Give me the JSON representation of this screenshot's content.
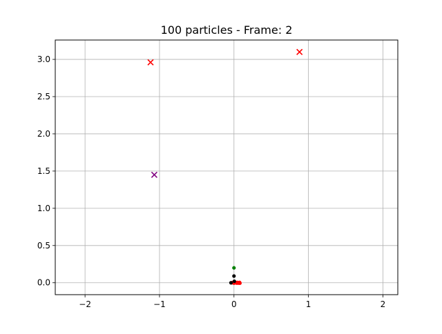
{
  "chart_data": {
    "type": "scatter",
    "title": "100 particles  - Frame: 2",
    "xlabel": "",
    "ylabel": "",
    "xlim": [
      -2.4,
      2.2
    ],
    "ylim": [
      -0.16,
      3.26
    ],
    "xticks": [
      -2,
      -1,
      0,
      1,
      2
    ],
    "xtick_labels": [
      "−2",
      "−1",
      "0",
      "1",
      "2"
    ],
    "yticks": [
      0.0,
      0.5,
      1.0,
      1.5,
      2.0,
      2.5,
      3.0
    ],
    "ytick_labels": [
      "0.0",
      "0.5",
      "1.0",
      "1.5",
      "2.0",
      "2.5",
      "3.0"
    ],
    "grid": true,
    "series": [
      {
        "marker": "x",
        "color": "#ff0000",
        "points": [
          [
            -1.12,
            2.96
          ],
          [
            0.88,
            3.1
          ]
        ]
      },
      {
        "marker": "x",
        "color": "#800080",
        "points": [
          [
            -1.07,
            1.45
          ]
        ]
      },
      {
        "marker": "dot",
        "color": "#ff0000",
        "points": [
          [
            -0.03,
            0.0
          ],
          [
            -0.01,
            0.005
          ],
          [
            0.0,
            -0.005
          ],
          [
            0.02,
            0.0
          ],
          [
            0.04,
            -0.005
          ],
          [
            0.06,
            0.0
          ],
          [
            0.075,
            0.005
          ],
          [
            0.08,
            -0.005
          ],
          [
            0.015,
            0.005
          ],
          [
            0.045,
            0.005
          ],
          [
            0.065,
            -0.005
          ]
        ]
      },
      {
        "marker": "dot",
        "color": "#000000",
        "points": [
          [
            -0.04,
            0.0
          ],
          [
            0.0,
            0.09
          ],
          [
            0.005,
            0.02
          ]
        ]
      },
      {
        "marker": "dot",
        "color": "#008000",
        "points": [
          [
            0.0,
            0.2
          ]
        ]
      }
    ]
  }
}
